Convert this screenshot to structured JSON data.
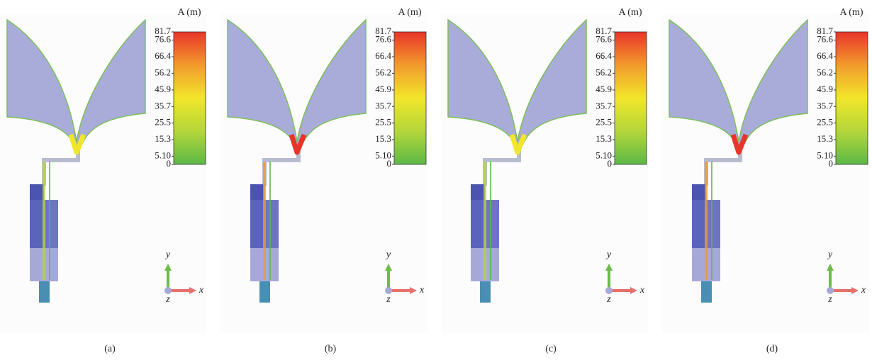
{
  "panels": [
    {
      "label": "(a)",
      "colorbar": {
        "title": "A (m)",
        "ticks": [
          81.7,
          76.6,
          66.4,
          56.2,
          45.9,
          35.7,
          25.5,
          15.3,
          {
            "value": 5.1,
            "label": "5.10"
          },
          0
        ]
      },
      "axes": {
        "x": "x",
        "y": "y",
        "z": "z"
      }
    },
    {
      "label": "(b)",
      "colorbar": {
        "title": "A (m)",
        "ticks": [
          81.7,
          76.6,
          66.4,
          56.2,
          45.9,
          35.7,
          25.5,
          15.3,
          {
            "value": 5.1,
            "label": "5.10"
          },
          0
        ]
      },
      "axes": {
        "x": "x",
        "y": "y",
        "z": "z"
      }
    },
    {
      "label": "(c)",
      "colorbar": {
        "title": "A (m)",
        "ticks": [
          81.7,
          76.6,
          66.4,
          56.2,
          45.9,
          35.7,
          25.5,
          15.3,
          {
            "value": 5.1,
            "label": "5.10"
          },
          0
        ]
      },
      "axes": {
        "x": "x",
        "y": "y",
        "z": "z"
      }
    },
    {
      "label": "(d)",
      "colorbar": {
        "title": "A (m)",
        "ticks": [
          81.7,
          76.6,
          66.4,
          56.2,
          45.9,
          35.7,
          25.5,
          15.3,
          {
            "value": 5.1,
            "label": "5.10"
          },
          0
        ]
      },
      "axes": {
        "x": "x",
        "y": "y",
        "z": "z"
      }
    }
  ]
}
